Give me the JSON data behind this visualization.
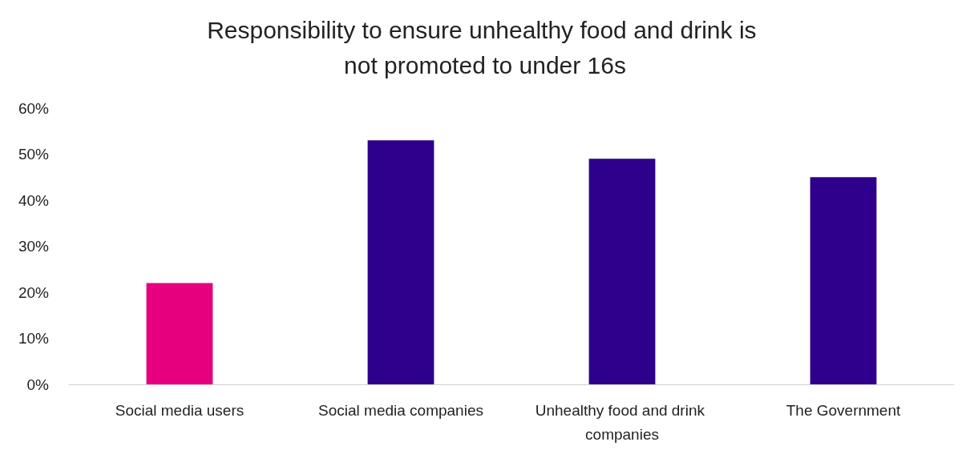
{
  "chart_data": {
    "type": "bar",
    "title": "Responsibility to ensure unhealthy food and drink is not promoted to under 16s",
    "categories": [
      "Social media users",
      "Social media companies",
      "Unhealthy food and drink companies",
      "The Government"
    ],
    "values": [
      22,
      53,
      49,
      45
    ],
    "colors": [
      "#e6007e",
      "#2e008b",
      "#2e008b",
      "#2e008b"
    ],
    "ylim": [
      0,
      60
    ],
    "yticks": [
      {
        "value": 0,
        "label": "0%"
      },
      {
        "value": 10,
        "label": "10%"
      },
      {
        "value": 20,
        "label": "20%"
      },
      {
        "value": 30,
        "label": "30%"
      },
      {
        "value": 40,
        "label": "40%"
      },
      {
        "value": 50,
        "label": "50%"
      },
      {
        "value": 60,
        "label": "60%"
      }
    ],
    "grid": false
  }
}
